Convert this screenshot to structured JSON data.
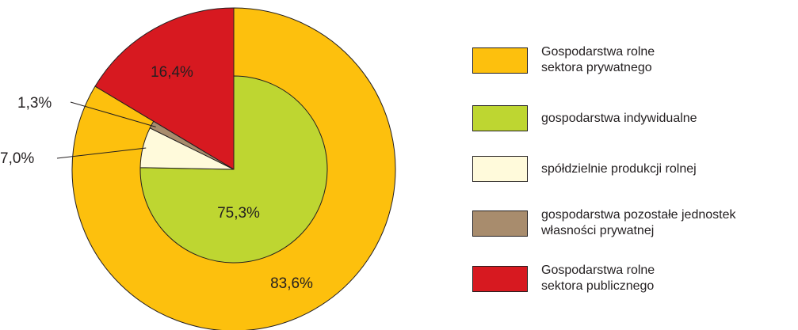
{
  "chart_data": {
    "type": "pie",
    "title": "",
    "outer_ring": {
      "slices": [
        {
          "key": "private",
          "label": "Gospodarstwa rolne sektora prywatnego",
          "value": 83.6,
          "display": "83,6%",
          "color": "#fdc00d"
        },
        {
          "key": "public",
          "label": "Gospodarstwa rolne sektora publicznego",
          "value": 16.4,
          "display": "16,4%",
          "color": "#d71920"
        }
      ]
    },
    "inner_ring": {
      "slices": [
        {
          "key": "individual",
          "label": "gospodarstwa indywidualne",
          "value": 75.3,
          "display": "75,3%",
          "color": "#bed631"
        },
        {
          "key": "cooperatives",
          "label": "spółdzielnie produkcji rolnej",
          "value": 7.0,
          "display": "7,0%",
          "color": "#fffadb"
        },
        {
          "key": "other",
          "label": "gospodarstwa pozostałe jednostek własności prywatnej",
          "value": 1.3,
          "display": "1,3%",
          "color": "#a88c6d"
        }
      ]
    },
    "legend": [
      {
        "text": "Gospodarstwa rolne\nsektora prywatnego",
        "color": "#fdc00d"
      },
      {
        "text": "gospodarstwa indywidualne",
        "color": "#bed631"
      },
      {
        "text": "spółdzielnie produkcji rolnej",
        "color": "#fffadb"
      },
      {
        "text": "gospodarstwa pozostałe jednostek\nwłasności prywatnej",
        "color": "#a88c6d"
      },
      {
        "text": "Gospodarstwa rolne\nsektora publicznego",
        "color": "#d71920"
      }
    ],
    "legend_position": "right"
  },
  "colors": {
    "outline": "#231f20",
    "text": "#231f20"
  }
}
